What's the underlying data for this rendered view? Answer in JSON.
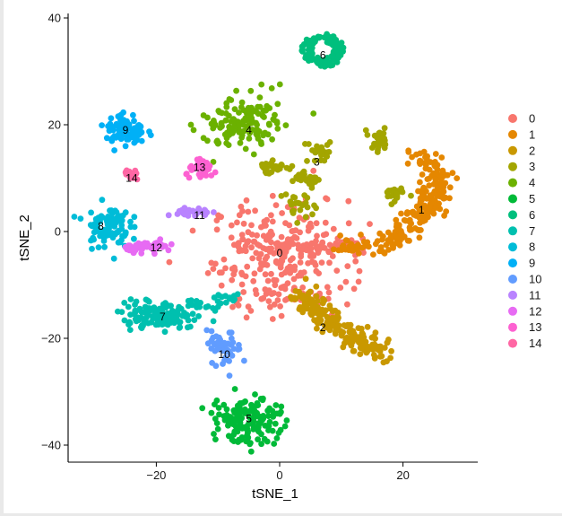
{
  "chart_data": {
    "type": "scatter",
    "title": "",
    "xlabel": "tSNE_1",
    "ylabel": "tSNE_2",
    "xlim": [
      -34,
      32
    ],
    "ylim": [
      -42,
      41
    ],
    "xticks": [
      -20,
      0,
      20
    ],
    "yticks": [
      -40,
      -20,
      0,
      20,
      40
    ],
    "xtick_labels": [
      "−20",
      "0",
      "20"
    ],
    "ytick_labels": [
      "−40",
      "−20",
      "0",
      "20",
      "40"
    ],
    "legend_position": "right",
    "clusters": [
      {
        "name": "0",
        "color": "#F8766D",
        "label_at": [
          0,
          -4
        ],
        "shape": "blob",
        "n": 260,
        "cx": 0,
        "cy": -5,
        "sx": 5.5,
        "sy": 5.5,
        "arm": [
          [
            0,
            -3
          ],
          [
            14,
            -3
          ]
        ]
      },
      {
        "name": "1",
        "color": "#E58700",
        "label_at": [
          23,
          4
        ],
        "shape": "arm",
        "n": 230,
        "path": [
          [
            10,
            -3
          ],
          [
            18,
            -2
          ],
          [
            22,
            2
          ],
          [
            25,
            6
          ],
          [
            26,
            10
          ],
          [
            23,
            14
          ]
        ],
        "spread": 1.6
      },
      {
        "name": "2",
        "color": "#C99800",
        "label_at": [
          7,
          -18
        ],
        "shape": "arm",
        "n": 190,
        "path": [
          [
            3,
            -11
          ],
          [
            7,
            -16
          ],
          [
            12,
            -20
          ],
          [
            17,
            -23
          ]
        ],
        "spread": 1.6
      },
      {
        "name": "3",
        "color": "#A3A500",
        "label_at": [
          6,
          13
        ],
        "shape": "multi",
        "n": 150,
        "blobs": [
          [
            -1,
            12,
            1.2
          ],
          [
            4,
            10,
            1.4
          ],
          [
            7,
            15,
            1.5
          ],
          [
            3,
            5,
            1.6
          ],
          [
            16,
            17,
            1.0
          ],
          [
            19,
            7,
            1.0
          ]
        ]
      },
      {
        "name": "4",
        "color": "#6BB100",
        "label_at": [
          -5,
          19
        ],
        "shape": "blob",
        "n": 130,
        "cx": -6,
        "cy": 20,
        "sx": 3.0,
        "sy": 2.6
      },
      {
        "name": "5",
        "color": "#00BA38",
        "label_at": [
          -5,
          -35
        ],
        "shape": "blob",
        "n": 150,
        "cx": -5,
        "cy": -35,
        "sx": 3.0,
        "sy": 2.2
      },
      {
        "name": "6",
        "color": "#00BF7D",
        "label_at": [
          7,
          33
        ],
        "shape": "ring",
        "n": 120,
        "cx": 7,
        "cy": 34,
        "r": 3.2
      },
      {
        "name": "7",
        "color": "#00C0AF",
        "label_at": [
          -19,
          -16
        ],
        "shape": "blob",
        "n": 130,
        "cx": -20,
        "cy": -16,
        "sx": 2.8,
        "sy": 1.4,
        "arm": [
          [
            -15,
            -14
          ],
          [
            -6,
            -12
          ]
        ]
      },
      {
        "name": "8",
        "color": "#00BCD8",
        "label_at": [
          -29,
          1
        ],
        "shape": "blob",
        "n": 90,
        "cx": -28,
        "cy": 1,
        "sx": 1.8,
        "sy": 2.0
      },
      {
        "name": "9",
        "color": "#00B0F6",
        "label_at": [
          -25,
          19
        ],
        "shape": "blob",
        "n": 80,
        "cx": -25,
        "cy": 19,
        "sx": 1.6,
        "sy": 1.6
      },
      {
        "name": "10",
        "color": "#619CFF",
        "label_at": [
          -9,
          -23
        ],
        "shape": "blob",
        "n": 45,
        "cx": -9,
        "cy": -22,
        "sx": 1.4,
        "sy": 1.6
      },
      {
        "name": "11",
        "color": "#B983FF",
        "label_at": [
          -13,
          3
        ],
        "shape": "blob",
        "n": 30,
        "cx": -14,
        "cy": 3.5,
        "sx": 1.4,
        "sy": 0.5
      },
      {
        "name": "12",
        "color": "#E76BF3",
        "label_at": [
          -20,
          -3
        ],
        "shape": "blob",
        "n": 50,
        "cx": -21,
        "cy": -2.8,
        "sx": 2.0,
        "sy": 0.5
      },
      {
        "name": "13",
        "color": "#FD61D1",
        "label_at": [
          -13,
          12
        ],
        "shape": "blob",
        "n": 35,
        "cx": -12.5,
        "cy": 11.5,
        "sx": 1.3,
        "sy": 0.8
      },
      {
        "name": "14",
        "color": "#FF67A4",
        "label_at": [
          -24,
          10
        ],
        "shape": "blob",
        "n": 15,
        "cx": -24,
        "cy": 10.5,
        "sx": 0.6,
        "sy": 0.6
      }
    ]
  }
}
